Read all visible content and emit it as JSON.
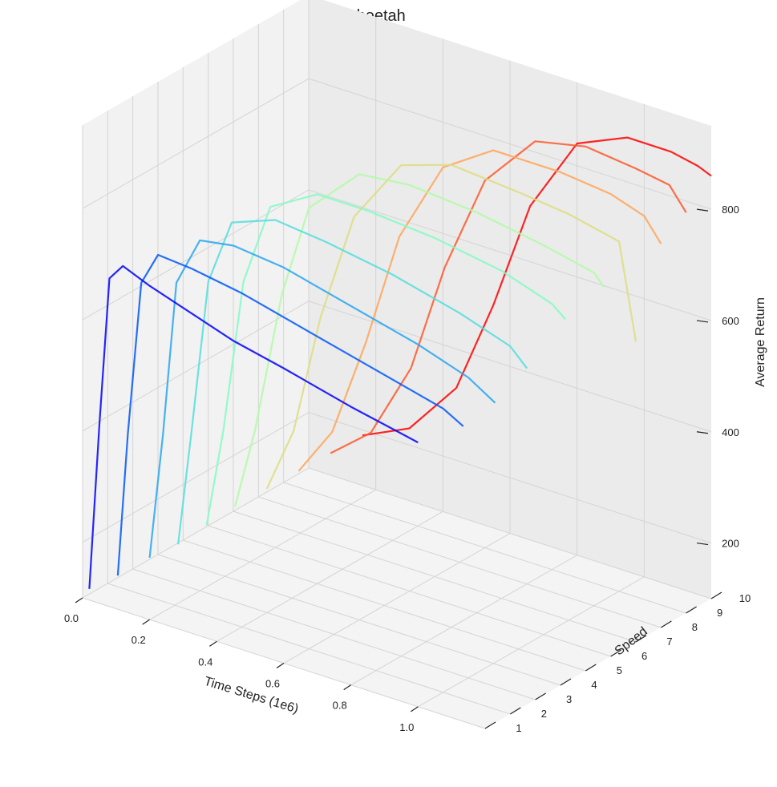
{
  "chart_data": {
    "type": "line",
    "subtype": "3d",
    "title": "Cheetah",
    "xlabel": "Time Steps (1e6)",
    "ylabel": "Speed",
    "zlabel": "Average Return",
    "xlim": [
      0,
      1.2
    ],
    "ylim": [
      1,
      10
    ],
    "zlim": [
      100,
      950
    ],
    "x_ticks": [
      "0.0",
      "0.2",
      "0.4",
      "0.6",
      "0.8",
      "1.0"
    ],
    "y_ticks": [
      "1",
      "2",
      "3",
      "4",
      "5",
      "6",
      "7",
      "8",
      "9",
      "10"
    ],
    "z_ticks": [
      "200",
      "400",
      "600",
      "800"
    ],
    "colormap": "rainbow",
    "colors": {
      "low_speed": "#6a3df0",
      "mid_speed": "#28c8e6",
      "high_speed": "#f04a2a",
      "pane": "#efefef",
      "grid": "#d4d4d4"
    },
    "series_note": "Multiple learning-curve runs per speed level (colored by speed, rainbow colormap)",
    "series": [
      {
        "speed": 1,
        "values_x": [
          0.02,
          0.05,
          0.08,
          0.12,
          0.2,
          0.3,
          0.45,
          0.6,
          0.8,
          1.0
        ],
        "values_z": [
          120,
          420,
          690,
          720,
          700,
          680,
          650,
          630,
          600,
          575
        ]
      },
      {
        "speed": 2,
        "values_x": [
          0.03,
          0.06,
          0.1,
          0.15,
          0.25,
          0.4,
          0.6,
          0.8,
          1.0,
          1.06
        ],
        "values_z": [
          120,
          380,
          660,
          720,
          715,
          700,
          670,
          640,
          610,
          590
        ]
      },
      {
        "speed": 3,
        "values_x": [
          0.05,
          0.09,
          0.13,
          0.2,
          0.3,
          0.45,
          0.65,
          0.85,
          1.0,
          1.08
        ],
        "values_z": [
          130,
          360,
          640,
          730,
          740,
          730,
          700,
          670,
          640,
          610
        ]
      },
      {
        "speed": 4,
        "values_x": [
          0.06,
          0.1,
          0.15,
          0.22,
          0.35,
          0.5,
          0.7,
          0.9,
          1.05,
          1.1
        ],
        "values_z": [
          130,
          340,
          620,
          740,
          770,
          760,
          740,
          710,
          680,
          650
        ]
      },
      {
        "speed": 5,
        "values_x": [
          0.07,
          0.12,
          0.18,
          0.26,
          0.4,
          0.55,
          0.75,
          0.95,
          1.1,
          1.14
        ],
        "values_z": [
          140,
          320,
          600,
          750,
          800,
          800,
          790,
          770,
          740,
          720
        ]
      },
      {
        "speed": 6,
        "values_x": [
          0.08,
          0.14,
          0.22,
          0.3,
          0.45,
          0.6,
          0.8,
          1.0,
          1.15,
          1.18
        ],
        "values_z": [
          150,
          300,
          560,
          730,
          820,
          830,
          820,
          800,
          780,
          760
        ]
      },
      {
        "speed": 7,
        "values_x": [
          0.1,
          0.18,
          0.26,
          0.36,
          0.5,
          0.65,
          0.85,
          1.0,
          1.15,
          1.2
        ],
        "values_z": [
          160,
          280,
          500,
          700,
          820,
          850,
          840,
          830,
          810,
          640
        ]
      },
      {
        "speed": 8,
        "values_x": [
          0.12,
          0.22,
          0.32,
          0.42,
          0.55,
          0.7,
          0.9,
          1.05,
          1.15,
          1.2
        ],
        "values_z": [
          170,
          260,
          440,
          650,
          800,
          860,
          860,
          850,
          830,
          790
        ]
      },
      {
        "speed": 9,
        "values_x": [
          0.14,
          0.26,
          0.38,
          0.48,
          0.6,
          0.75,
          0.9,
          1.05,
          1.15,
          1.2
        ],
        "values_z": [
          180,
          240,
          380,
          580,
          760,
          860,
          880,
          870,
          860,
          820
        ]
      },
      {
        "speed": 10,
        "values_x": [
          0.16,
          0.3,
          0.44,
          0.55,
          0.66,
          0.8,
          0.95,
          1.08,
          1.16,
          1.2
        ],
        "values_z": [
          190,
          230,
          330,
          500,
          700,
          840,
          880,
          880,
          870,
          860
        ]
      }
    ]
  }
}
